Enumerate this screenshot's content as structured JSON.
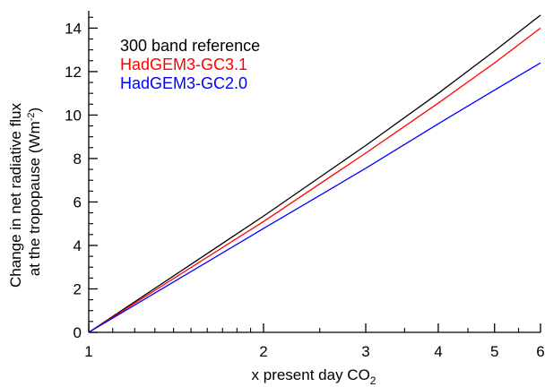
{
  "chart_data": {
    "type": "line",
    "xscale": "log",
    "xlim": [
      1,
      6
    ],
    "ylim": [
      0,
      14.8
    ],
    "xticks": [
      1,
      2,
      3,
      4,
      5,
      6
    ],
    "yticks": [
      0,
      2,
      4,
      6,
      8,
      10,
      12,
      14
    ],
    "xlabel": "x present day CO",
    "xlabel_sub": "2",
    "ylabel_line1": "Change in net radiative flux",
    "ylabel_line2_pre": "at the tropopause (Wm",
    "ylabel_line2_sup": "-2",
    "ylabel_line2_post": ")",
    "grid": false,
    "legend_position": "top-left",
    "series": [
      {
        "name": "300 band reference",
        "color": "#000000",
        "x": [
          1,
          2,
          3,
          4,
          5,
          6
        ],
        "y": [
          0,
          5.35,
          8.6,
          11.0,
          12.95,
          14.6
        ]
      },
      {
        "name": "HadGEM3-GC3.1",
        "color": "#ff0000",
        "x": [
          1,
          2,
          3,
          4,
          5,
          6
        ],
        "y": [
          0,
          5.1,
          8.25,
          10.55,
          12.4,
          14.0
        ]
      },
      {
        "name": "HadGEM3-GC2.0",
        "color": "#0000ff",
        "x": [
          1,
          2,
          3,
          4,
          5,
          6
        ],
        "y": [
          0,
          4.78,
          7.55,
          9.6,
          11.15,
          12.4
        ]
      }
    ]
  }
}
